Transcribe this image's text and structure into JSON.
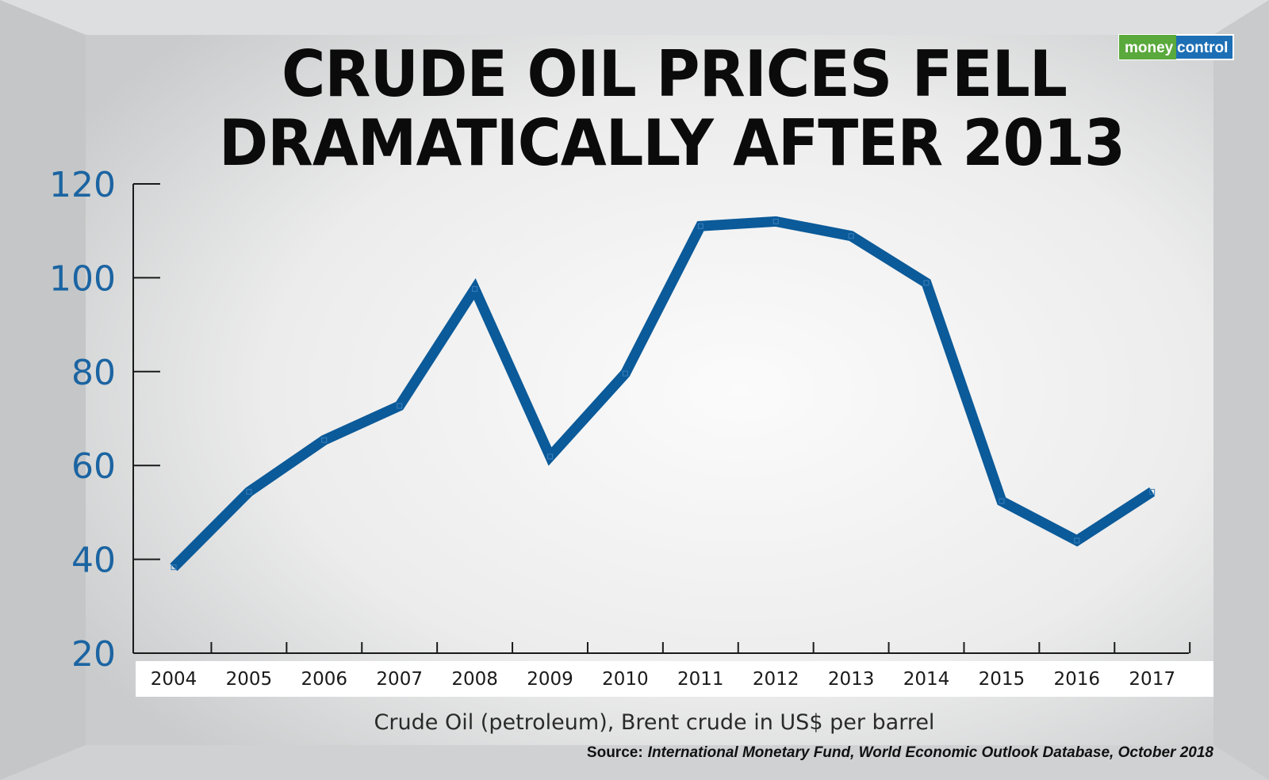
{
  "title_line1": "CRUDE OIL PRICES FELL",
  "title_line2": "DRAMATICALLY AFTER 2013",
  "logo": {
    "part1": "money",
    "part2": "control",
    "color1": "#5aa93c",
    "color2": "#1d6fb5"
  },
  "xlabel": "Crude Oil (petroleum),  Brent crude in US$ per barrel",
  "source": {
    "label": "Source:",
    "text": "International Monetary Fund, World Economic Outlook Database, October 2018"
  },
  "colors": {
    "line": "#0b5a99",
    "ytick": "#1b64a2",
    "background": "#eeeeee"
  },
  "chart_data": {
    "type": "line",
    "title": "CRUDE OIL PRICES FELL DRAMATICALLY AFTER 2013",
    "xlabel": "Crude Oil (petroleum),  Brent crude in US$ per barrel",
    "ylabel": "",
    "categories": [
      "2004",
      "2005",
      "2006",
      "2007",
      "2008",
      "2009",
      "2010",
      "2011",
      "2012",
      "2013",
      "2014",
      "2015",
      "2016",
      "2017"
    ],
    "series": [
      {
        "values": [
          38.3,
          54.4,
          65.4,
          72.7,
          97.6,
          61.9,
          79.6,
          111.0,
          112.0,
          108.9,
          98.9,
          52.4,
          44.0,
          54.4
        ]
      }
    ],
    "yticks": [
      20,
      40,
      60,
      80,
      100,
      120
    ],
    "ylim": [
      20,
      120
    ],
    "grid": false,
    "legend": "none"
  }
}
